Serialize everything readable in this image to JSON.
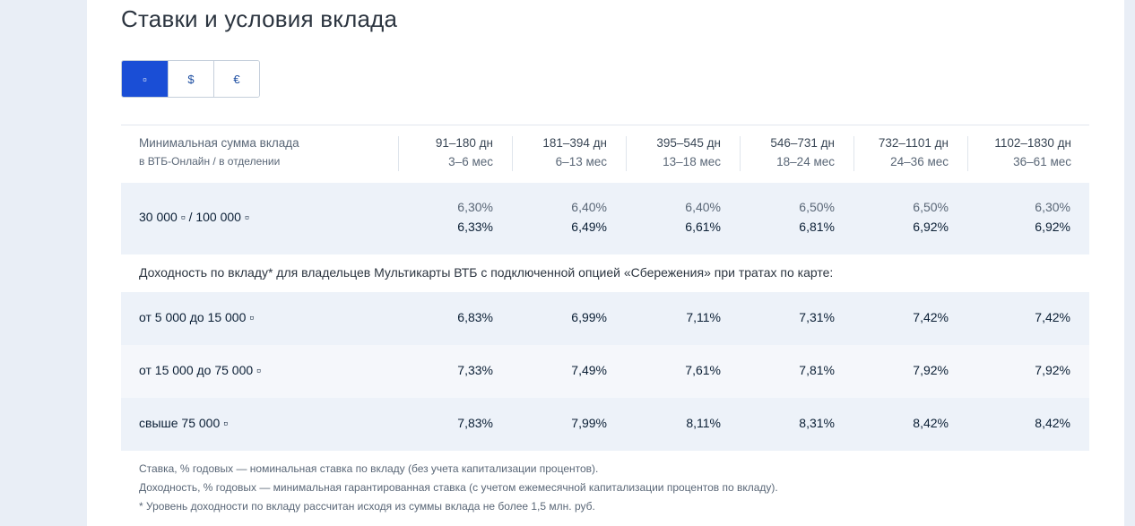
{
  "title": "Ставки и условия вклада",
  "currency_tabs": [
    {
      "label": "▫",
      "active": true
    },
    {
      "label": "$",
      "active": false
    },
    {
      "label": "€",
      "active": false
    }
  ],
  "header": {
    "label_line1": "Минимальная сумма вклада",
    "label_line2": "в ВТБ-Онлайн / в отделении",
    "columns": [
      {
        "days": "91–180 дн",
        "months": "3–6 мес"
      },
      {
        "days": "181–394 дн",
        "months": "6–13 мес"
      },
      {
        "days": "395–545 дн",
        "months": "13–18 мес"
      },
      {
        "days": "546–731 дн",
        "months": "18–24 мес"
      },
      {
        "days": "732–1101 дн",
        "months": "24–36 мес"
      },
      {
        "days": "1102–1830 дн",
        "months": "36–61 мес"
      }
    ]
  },
  "main_row": {
    "label": "30 000 ▫ / 100 000 ▫",
    "rates": [
      "6,30%",
      "6,40%",
      "6,40%",
      "6,50%",
      "6,50%",
      "6,30%"
    ],
    "yields": [
      "6,33%",
      "6,49%",
      "6,61%",
      "6,81%",
      "6,92%",
      "6,92%"
    ]
  },
  "multicard_note": "Доходность по вкладу* для владельцев Мультикарты ВТБ с подключенной опцией «Сбережения» при тратах по карте:",
  "tiers": [
    {
      "label": "от 5 000 до 15 000 ▫",
      "values": [
        "6,83%",
        "6,99%",
        "7,11%",
        "7,31%",
        "7,42%",
        "7,42%"
      ]
    },
    {
      "label": "от 15 000 до 75 000 ▫",
      "values": [
        "7,33%",
        "7,49%",
        "7,61%",
        "7,81%",
        "7,92%",
        "7,92%"
      ]
    },
    {
      "label": "свыше 75 000 ▫",
      "values": [
        "7,83%",
        "7,99%",
        "8,11%",
        "8,31%",
        "8,42%",
        "8,42%"
      ]
    }
  ],
  "footnotes": [
    "Ставка, % годовых — номинальная ставка по вкладу (без учета капитализации процентов).",
    "Доходность, % годовых — минимальная гарантированная ставка (с учетом ежемесячной капитализации процентов по вкладу).",
    "* Уровень доходности по вкладу рассчитан исходя из суммы вклада не более 1,5 млн. руб."
  ],
  "colors": {
    "accent": "#1a4ed6",
    "row_shade": "#edf2f9",
    "page_bg": "#e9eef6"
  }
}
